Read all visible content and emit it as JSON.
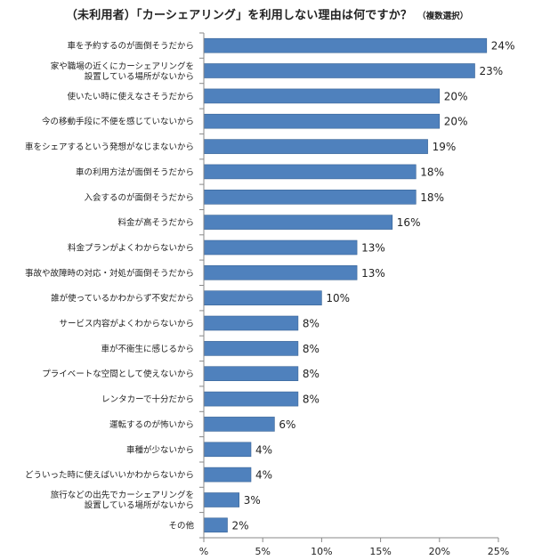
{
  "chart_data": {
    "type": "bar",
    "orientation": "horizontal",
    "title": "（未利用者）「カーシェアリング」を利用しない理由は何ですか？",
    "subtitle": "（複数選択）",
    "categories": [
      "車を予約するのが面倒そうだから",
      "家や職場の近くにカーシェアリングを\n設置している場所がないから",
      "使いたい時に使えなさそうだから",
      "今の移動手段に不便を感じていないから",
      "車をシェアするという発想がなじまないから",
      "車の利用方法が面倒そうだから",
      "入会するのが面倒そうだから",
      "料金が高そうだから",
      "料金プランがよくわからないから",
      "事故や故障時の対応・対処が面倒そうだから",
      "誰が使っているかわからず不安だから",
      "サービス内容がよくわからないから",
      "車が不衛生に感じるから",
      "プライベートな空間として使えないから",
      "レンタカーで十分だから",
      "運転するのが怖いから",
      "車種が少ないから",
      "どういった時に使えばいいかわからないから",
      "旅行などの出先でカーシェアリングを\n設置している場所がないから",
      "その他"
    ],
    "values": [
      24,
      23,
      20,
      20,
      19,
      18,
      18,
      16,
      13,
      13,
      10,
      8,
      8,
      8,
      8,
      6,
      4,
      4,
      3,
      2
    ],
    "value_labels": [
      "24%",
      "23%",
      "20%",
      "20%",
      "19%",
      "18%",
      "18%",
      "16%",
      "13%",
      "13%",
      "10%",
      "8%",
      "8%",
      "8%",
      "8%",
      "6%",
      "4%",
      "4%",
      "3%",
      "2%"
    ],
    "x_ticks": [
      0,
      5,
      10,
      15,
      20,
      25
    ],
    "x_tick_labels": [
      "%",
      "5%",
      "10%",
      "15%",
      "20%",
      "25%"
    ],
    "xlim": [
      0,
      25
    ],
    "grid": false,
    "bar_color": "#4f81bd",
    "bar_edge_color": "#3a6496"
  }
}
